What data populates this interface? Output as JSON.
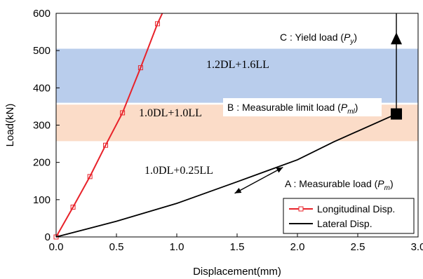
{
  "chart_data": {
    "type": "line",
    "xlabel": "Displacement(mm)",
    "ylabel": "Load(kN)",
    "xlim": [
      0,
      3.0
    ],
    "ylim": [
      0,
      600
    ],
    "x_ticks": [
      "0.0",
      "0.5",
      "1.0",
      "1.5",
      "2.0",
      "2.5",
      "3.0"
    ],
    "y_ticks": [
      "0",
      "100",
      "200",
      "300",
      "400",
      "500",
      "600"
    ],
    "grid": false,
    "legend_position": "bottom-right",
    "series": [
      {
        "name": "Longitudinal Disp.",
        "color": "#e8222a",
        "marker": "open-square",
        "points": [
          {
            "x": 0.0,
            "y": 0
          },
          {
            "x": 0.14,
            "y": 80
          },
          {
            "x": 0.28,
            "y": 162
          },
          {
            "x": 0.41,
            "y": 246
          },
          {
            "x": 0.55,
            "y": 333
          },
          {
            "x": 0.7,
            "y": 454
          },
          {
            "x": 0.84,
            "y": 572
          },
          {
            "x": 0.88,
            "y": 600
          }
        ]
      },
      {
        "name": "Lateral Disp.",
        "color": "#000000",
        "points": [
          {
            "x": 0.0,
            "y": 0
          },
          {
            "x": 0.5,
            "y": 42
          },
          {
            "x": 1.0,
            "y": 90
          },
          {
            "x": 1.5,
            "y": 148
          },
          {
            "x": 2.0,
            "y": 207
          },
          {
            "x": 2.3,
            "y": 255
          },
          {
            "x": 2.82,
            "y": 330
          }
        ]
      }
    ],
    "bands": [
      {
        "label": "1.2DL+1.6LL",
        "y_range": [
          360,
          505
        ],
        "color": "#b9cdec"
      },
      {
        "label": "1.0DL+1.0LL",
        "y_range": [
          257,
          355
        ],
        "color": "#fbdcc8"
      }
    ],
    "band_texts": [
      {
        "text": "1.0DL+0.25LL",
        "x": 1.0,
        "y": 170
      }
    ],
    "annotations": [
      {
        "label_prefix": "C : Yield load (",
        "symbol": "P",
        "subscript": "y",
        "label_suffix": ")",
        "marker": "filled-triangle",
        "point": {
          "x": 2.82,
          "y": 530
        }
      },
      {
        "label_prefix": "B : Measurable limit load (",
        "symbol": "P",
        "subscript": "ml",
        "label_suffix": ")",
        "marker": "filled-square",
        "point": {
          "x": 2.82,
          "y": 330
        }
      },
      {
        "label_prefix": "A : Measurable load (",
        "symbol": "P",
        "subscript": "m",
        "label_suffix": ")",
        "marker": "double-arrow",
        "point": {
          "x": 1.65,
          "y": 145
        }
      }
    ]
  }
}
